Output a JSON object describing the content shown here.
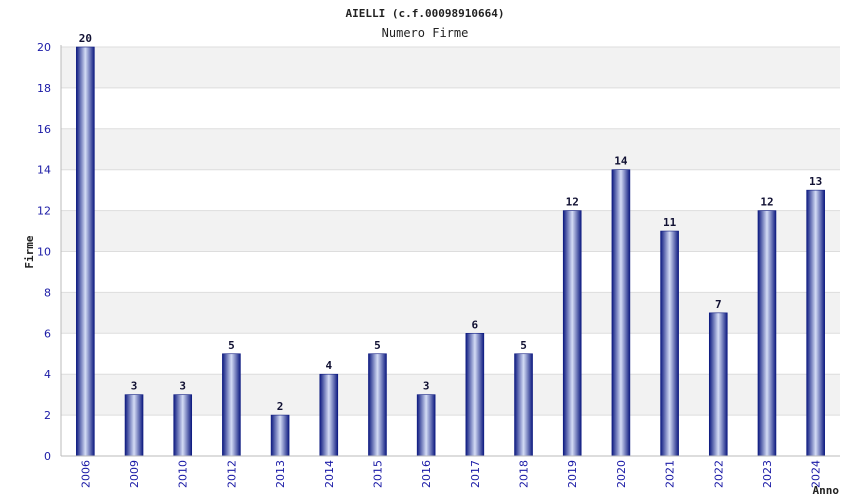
{
  "chart_data": {
    "type": "bar",
    "title": "AIELLI (c.f.00098910664)",
    "subtitle": "Numero Firme",
    "xlabel": "Anno",
    "ylabel": "Firme",
    "ylim": [
      0,
      20
    ],
    "yticks": [
      0,
      2,
      4,
      6,
      8,
      10,
      12,
      14,
      16,
      18,
      20
    ],
    "grid": true,
    "categories": [
      "2006",
      "2009",
      "2010",
      "2012",
      "2013",
      "2014",
      "2015",
      "2016",
      "2017",
      "2018",
      "2019",
      "2020",
      "2021",
      "2022",
      "2023",
      "2024"
    ],
    "values": [
      20,
      3,
      3,
      5,
      2,
      4,
      5,
      3,
      6,
      5,
      12,
      14,
      11,
      7,
      12,
      13
    ],
    "colors": {
      "bar_dark": "#0d1a80",
      "bar_light": "#d4dcf5",
      "band": "#f2f2f2",
      "tick_text": "#1a1aa6"
    }
  }
}
